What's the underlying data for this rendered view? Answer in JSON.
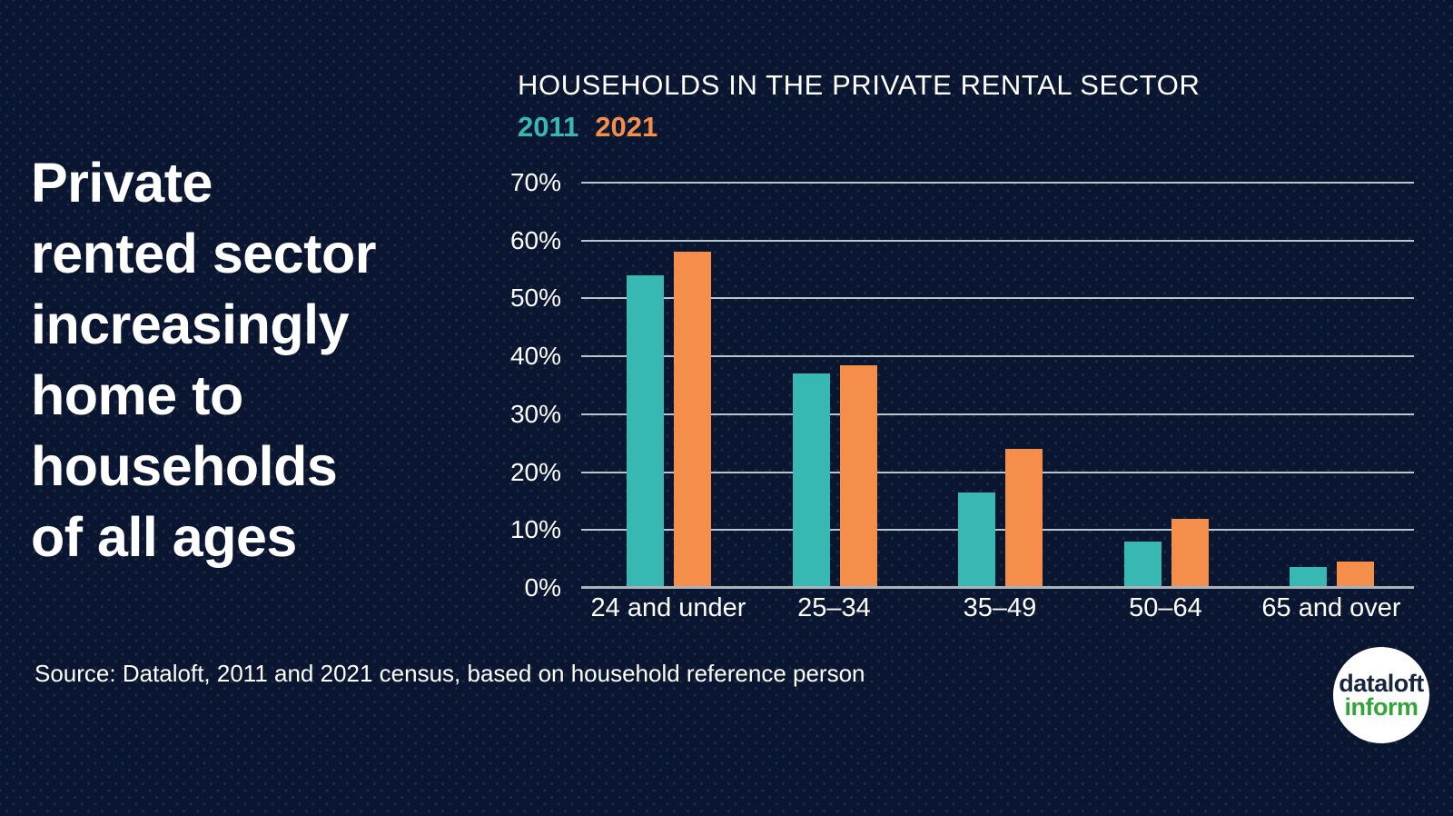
{
  "page": {
    "background_color": "#0a1630",
    "headline": "Private\nrented sector\nincreasingly\nhome to\nhouseholds\nof all ages",
    "source_text": "Source: Dataloft, 2011 and 2021 census, based on household reference person"
  },
  "logo": {
    "line1": "dataloft",
    "line2": "inform",
    "line1_color": "#16253f",
    "line2_color": "#31a538"
  },
  "chart_data": {
    "type": "bar",
    "title": "HOUSEHOLDS IN THE PRIVATE RENTAL SECTOR",
    "categories": [
      "24 and under",
      "25–34",
      "35–49",
      "50–64",
      "65 and over"
    ],
    "series": [
      {
        "name": "2011",
        "color": "#38b8b2",
        "values": [
          54,
          37,
          16.5,
          8,
          3.6
        ]
      },
      {
        "name": "2021",
        "color": "#f58d4b",
        "values": [
          58,
          38.5,
          24,
          12,
          4.6
        ]
      }
    ],
    "xlabel": "",
    "ylabel": "",
    "yticks": [
      0,
      10,
      20,
      30,
      40,
      50,
      60,
      70
    ],
    "ytick_suffix": "%",
    "ylim": [
      0,
      70
    ],
    "grid": true,
    "legend_position": "top-left",
    "gridline_color": "#ccd4db",
    "axis_line_color": "#a9b1b9"
  }
}
